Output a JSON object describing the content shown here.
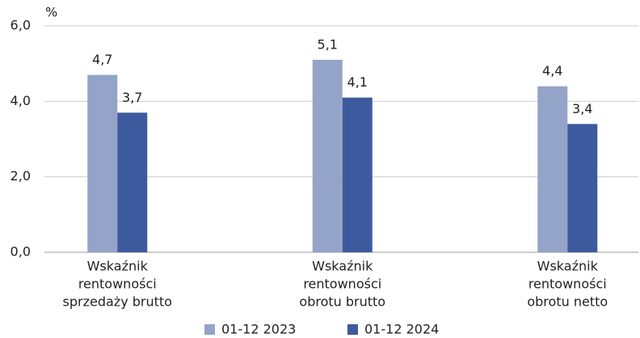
{
  "chart_data": {
    "type": "bar",
    "unit": "%",
    "categories": [
      [
        "Wskaźnik",
        "rentowności",
        "sprzedaży brutto"
      ],
      [
        "Wskaźnik",
        "rentowności",
        "obrotu brutto"
      ],
      [
        "Wskaźnik",
        "rentowności",
        "obrotu netto"
      ]
    ],
    "series": [
      {
        "name": "01-12 2023",
        "color": "#94a3c8",
        "values": [
          4.7,
          5.1,
          4.4
        ],
        "value_labels": [
          "4,7",
          "5,1",
          "4,4"
        ]
      },
      {
        "name": "01-12 2024",
        "color": "#3d5a9e",
        "values": [
          3.7,
          4.1,
          3.4
        ],
        "value_labels": [
          "3,7",
          "4,1",
          "3,4"
        ]
      }
    ],
    "ylim": [
      0,
      6
    ],
    "yticks": [
      {
        "value": 0,
        "label": "0,0"
      },
      {
        "value": 2,
        "label": "2,0"
      },
      {
        "value": 4,
        "label": "4,0"
      },
      {
        "value": 6,
        "label": "6,0"
      }
    ],
    "grid": true,
    "legend": "bottom"
  }
}
